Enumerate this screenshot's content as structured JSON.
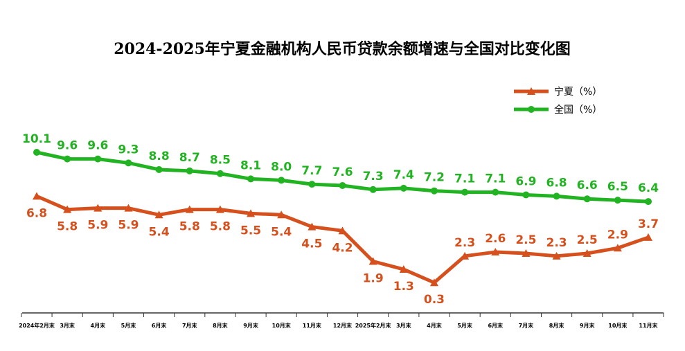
{
  "chart_data": {
    "type": "line",
    "title": "2024-2025年宁夏金融机构人民币贷款余额增速与全国对比变化图",
    "categories": [
      "2024年2月末",
      "3月末",
      "4月末",
      "5月末",
      "6月末",
      "7月末",
      "8月末",
      "9月末",
      "10月末",
      "11月末",
      "12月末",
      "2025年2月末",
      "3月末",
      "4月末",
      "5月末",
      "6月末",
      "7月末",
      "8月末",
      "9月末",
      "10月末",
      "11月末"
    ],
    "series": [
      {
        "name": "宁夏（%）",
        "color": "#d5501c",
        "marker": "triangle",
        "values": [
          6.8,
          5.8,
          5.9,
          5.9,
          5.4,
          5.8,
          5.8,
          5.5,
          5.4,
          4.5,
          4.2,
          1.9,
          1.3,
          0.3,
          2.3,
          2.6,
          2.5,
          2.3,
          2.5,
          2.9,
          3.7
        ],
        "value_labels": [
          "6.8",
          "5.8",
          "5.9",
          "5.9",
          "5.4",
          "5.8",
          "5.8",
          "5.5",
          "5.4",
          "4.5",
          "4.2",
          "1.9",
          "1.3",
          "0.3",
          "2.3",
          "2.6",
          "2.5",
          "2.3",
          "2.5",
          "2.9",
          "3.7"
        ]
      },
      {
        "name": "全国（%）",
        "color": "#22b322",
        "marker": "circle",
        "values": [
          10.1,
          9.6,
          9.6,
          9.3,
          8.8,
          8.7,
          8.5,
          8.1,
          8.0,
          7.7,
          7.6,
          7.3,
          7.4,
          7.2,
          7.1,
          7.1,
          6.9,
          6.8,
          6.6,
          6.5,
          6.4
        ],
        "value_labels": [
          "10.1",
          "9.6",
          "9.6",
          "9.3",
          "8.8",
          "8.7",
          "8.5",
          "8.1",
          "8.0",
          "7.7",
          "7.6",
          "7.3",
          "7.4",
          "7.2",
          "7.1",
          "7.1",
          "6.9",
          "6.8",
          "6.6",
          "6.5",
          "6.4"
        ]
      }
    ]
  }
}
